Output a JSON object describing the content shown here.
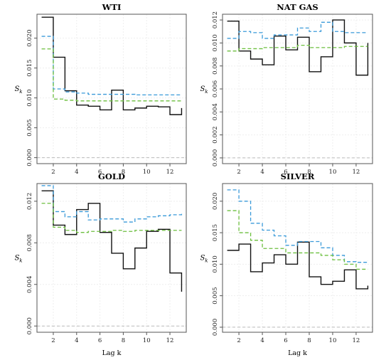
{
  "chart_data": [
    {
      "type": "line",
      "step": true,
      "title": "WTI",
      "ylabel": "S",
      "ylabel_sub": "k",
      "xlabel": "",
      "xlim": [
        0.6,
        13.4
      ],
      "ylim": [
        -0.001,
        0.024
      ],
      "xticks": [
        2,
        4,
        6,
        8,
        10,
        12
      ],
      "yticks": [
        0.0,
        0.005,
        0.01,
        0.015,
        0.02
      ],
      "ytick_labels": [
        "0.000",
        "0.005",
        "0.010",
        "0.015",
        "0.020"
      ],
      "grid": true,
      "reference_line": 0,
      "colors": {
        "observed": "#111111",
        "blue": "#3a9ad9",
        "green": "#6cbf3f",
        "zero": "#bbbbbb"
      },
      "x": [
        1,
        2,
        3,
        4,
        5,
        6,
        7,
        8,
        9,
        10,
        11,
        12,
        13
      ],
      "series": [
        {
          "values": [
            0.0235,
            0.0168,
            0.0112,
            0.0088,
            0.0086,
            0.008,
            0.0113,
            0.008,
            0.0083,
            0.0086,
            0.0085,
            0.0072,
            0.0083
          ],
          "style": "solid",
          "color": "#111111"
        },
        {
          "values": [
            0.0203,
            0.0115,
            0.011,
            0.0108,
            0.0106,
            0.0106,
            0.0106,
            0.0106,
            0.0105,
            0.0105,
            0.0105,
            0.0105,
            0.0105
          ],
          "style": "dashed",
          "color": "#3a9ad9"
        },
        {
          "values": [
            0.0182,
            0.0098,
            0.0096,
            0.0095,
            0.0095,
            0.0095,
            0.0095,
            0.0095,
            0.0095,
            0.0095,
            0.0095,
            0.0095,
            0.0095
          ],
          "style": "dashed",
          "color": "#6cbf3f"
        }
      ]
    },
    {
      "type": "line",
      "step": true,
      "title": "NAT GAS",
      "ylabel": "S",
      "ylabel_sub": "k",
      "xlabel": "",
      "xlim": [
        0.6,
        13.4
      ],
      "ylim": [
        -0.0005,
        0.0125
      ],
      "xticks": [
        2,
        4,
        6,
        8,
        10,
        12
      ],
      "yticks": [
        0.0,
        0.002,
        0.004,
        0.006,
        0.008,
        0.01,
        0.012
      ],
      "ytick_labels": [
        "0.000",
        "0.002",
        "0.004",
        "0.006",
        "0.008",
        "0.010",
        "0.012"
      ],
      "grid": true,
      "reference_line": 0,
      "colors": {
        "observed": "#111111",
        "blue": "#3a9ad9",
        "green": "#6cbf3f",
        "zero": "#bbbbbb"
      },
      "x": [
        1,
        2,
        3,
        4,
        5,
        6,
        7,
        8,
        9,
        10,
        11,
        12,
        13
      ],
      "series": [
        {
          "values": [
            0.0119,
            0.0093,
            0.0086,
            0.0081,
            0.0106,
            0.0094,
            0.0105,
            0.0075,
            0.0088,
            0.012,
            0.01,
            0.0072,
            0.01
          ],
          "style": "solid",
          "color": "#111111"
        },
        {
          "values": [
            0.0104,
            0.011,
            0.0109,
            0.0104,
            0.0107,
            0.0107,
            0.0113,
            0.011,
            0.0118,
            0.011,
            0.0109,
            0.0109,
            0.0109
          ],
          "style": "dashed",
          "color": "#3a9ad9"
        },
        {
          "values": [
            0.0093,
            0.0095,
            0.0095,
            0.0096,
            0.0096,
            0.0096,
            0.0098,
            0.0096,
            0.0096,
            0.0096,
            0.0097,
            0.0097,
            0.0097
          ],
          "style": "dashed",
          "color": "#6cbf3f"
        }
      ]
    },
    {
      "type": "line",
      "step": true,
      "title": "GOLD",
      "ylabel": "S",
      "ylabel_sub": "k",
      "xlabel": "Lag k",
      "xlim": [
        0.6,
        13.4
      ],
      "ylim": [
        -0.0006,
        0.0137
      ],
      "xticks": [
        2,
        4,
        6,
        8,
        10,
        12
      ],
      "yticks": [
        0.0,
        0.004,
        0.008,
        0.012
      ],
      "ytick_labels": [
        "0.000",
        "0.004",
        "0.008",
        "0.012"
      ],
      "grid": true,
      "reference_line": 0,
      "colors": {
        "observed": "#111111",
        "blue": "#3a9ad9",
        "green": "#6cbf3f",
        "zero": "#bbbbbb"
      },
      "x": [
        1,
        2,
        3,
        4,
        5,
        6,
        7,
        8,
        9,
        10,
        11,
        12,
        13
      ],
      "series": [
        {
          "values": [
            0.013,
            0.0097,
            0.0088,
            0.0112,
            0.0118,
            0.009,
            0.007,
            0.0055,
            0.0075,
            0.0091,
            0.0093,
            0.0051,
            0.0033
          ],
          "style": "solid",
          "color": "#111111"
        },
        {
          "values": [
            0.0135,
            0.011,
            0.0105,
            0.011,
            0.0102,
            0.0103,
            0.0103,
            0.01,
            0.0103,
            0.0105,
            0.0106,
            0.0107,
            0.0108
          ],
          "style": "dashed",
          "color": "#3a9ad9"
        },
        {
          "values": [
            0.0118,
            0.0095,
            0.0092,
            0.009,
            0.0091,
            0.0091,
            0.0092,
            0.0091,
            0.0092,
            0.0092,
            0.0092,
            0.0092,
            0.0092
          ],
          "style": "dashed",
          "color": "#6cbf3f"
        }
      ]
    },
    {
      "type": "line",
      "step": true,
      "title": "SILVER",
      "ylabel": "S",
      "ylabel_sub": "k",
      "xlabel": "Lag k",
      "xlim": [
        0.6,
        13.4
      ],
      "ylim": [
        -0.0008,
        0.0228
      ],
      "xticks": [
        2,
        4,
        6,
        8,
        10,
        12
      ],
      "yticks": [
        0.0,
        0.005,
        0.01,
        0.015,
        0.02
      ],
      "ytick_labels": [
        "0.000",
        "0.005",
        "0.010",
        "0.015",
        "0.020"
      ],
      "grid": true,
      "reference_line": 0,
      "colors": {
        "observed": "#111111",
        "blue": "#3a9ad9",
        "green": "#6cbf3f",
        "zero": "#bbbbbb"
      },
      "x": [
        1,
        2,
        3,
        4,
        5,
        6,
        7,
        8,
        9,
        10,
        11,
        12,
        13
      ],
      "series": [
        {
          "values": [
            0.0122,
            0.0132,
            0.0088,
            0.0102,
            0.0115,
            0.01,
            0.0135,
            0.008,
            0.0068,
            0.0073,
            0.0091,
            0.0061,
            0.0066
          ],
          "style": "solid",
          "color": "#111111"
        },
        {
          "values": [
            0.0218,
            0.02,
            0.0165,
            0.0154,
            0.0145,
            0.013,
            0.0136,
            0.0136,
            0.0126,
            0.0114,
            0.0104,
            0.0103,
            0.0105
          ],
          "style": "dashed",
          "color": "#3a9ad9"
        },
        {
          "values": [
            0.0185,
            0.015,
            0.0138,
            0.0125,
            0.0125,
            0.0118,
            0.0118,
            0.0118,
            0.0114,
            0.0107,
            0.01,
            0.0092,
            0.0092
          ],
          "style": "dashed",
          "color": "#6cbf3f"
        }
      ]
    }
  ]
}
